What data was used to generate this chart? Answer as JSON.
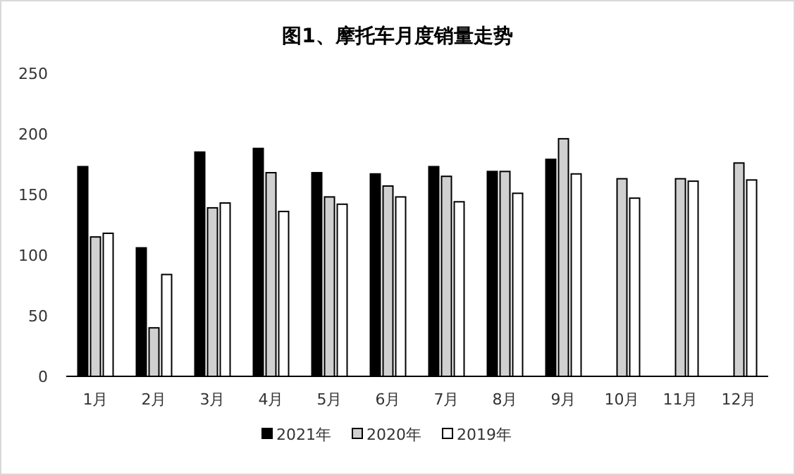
{
  "chart_data": {
    "type": "bar",
    "title": "图1、摩托车月度销量走势",
    "categories": [
      "1月",
      "2月",
      "3月",
      "4月",
      "5月",
      "6月",
      "7月",
      "8月",
      "9月",
      "10月",
      "11月",
      "12月"
    ],
    "series": [
      {
        "name": "2021年",
        "color": "#000000",
        "values": [
          173,
          106,
          185,
          188,
          168,
          167,
          173,
          169,
          179,
          null,
          null,
          null
        ]
      },
      {
        "name": "2020年",
        "color": "#d0d0d0",
        "values": [
          115,
          40,
          139,
          168,
          148,
          157,
          165,
          169,
          196,
          163,
          163,
          176
        ]
      },
      {
        "name": "2019年",
        "color": "#ffffff",
        "values": [
          118,
          84,
          143,
          136,
          142,
          148,
          144,
          151,
          167,
          147,
          161,
          162
        ]
      }
    ],
    "ylim": [
      0,
      250
    ],
    "yticks": [
      0,
      50,
      100,
      150,
      200,
      250
    ],
    "grid": false,
    "legend": "bottom"
  }
}
